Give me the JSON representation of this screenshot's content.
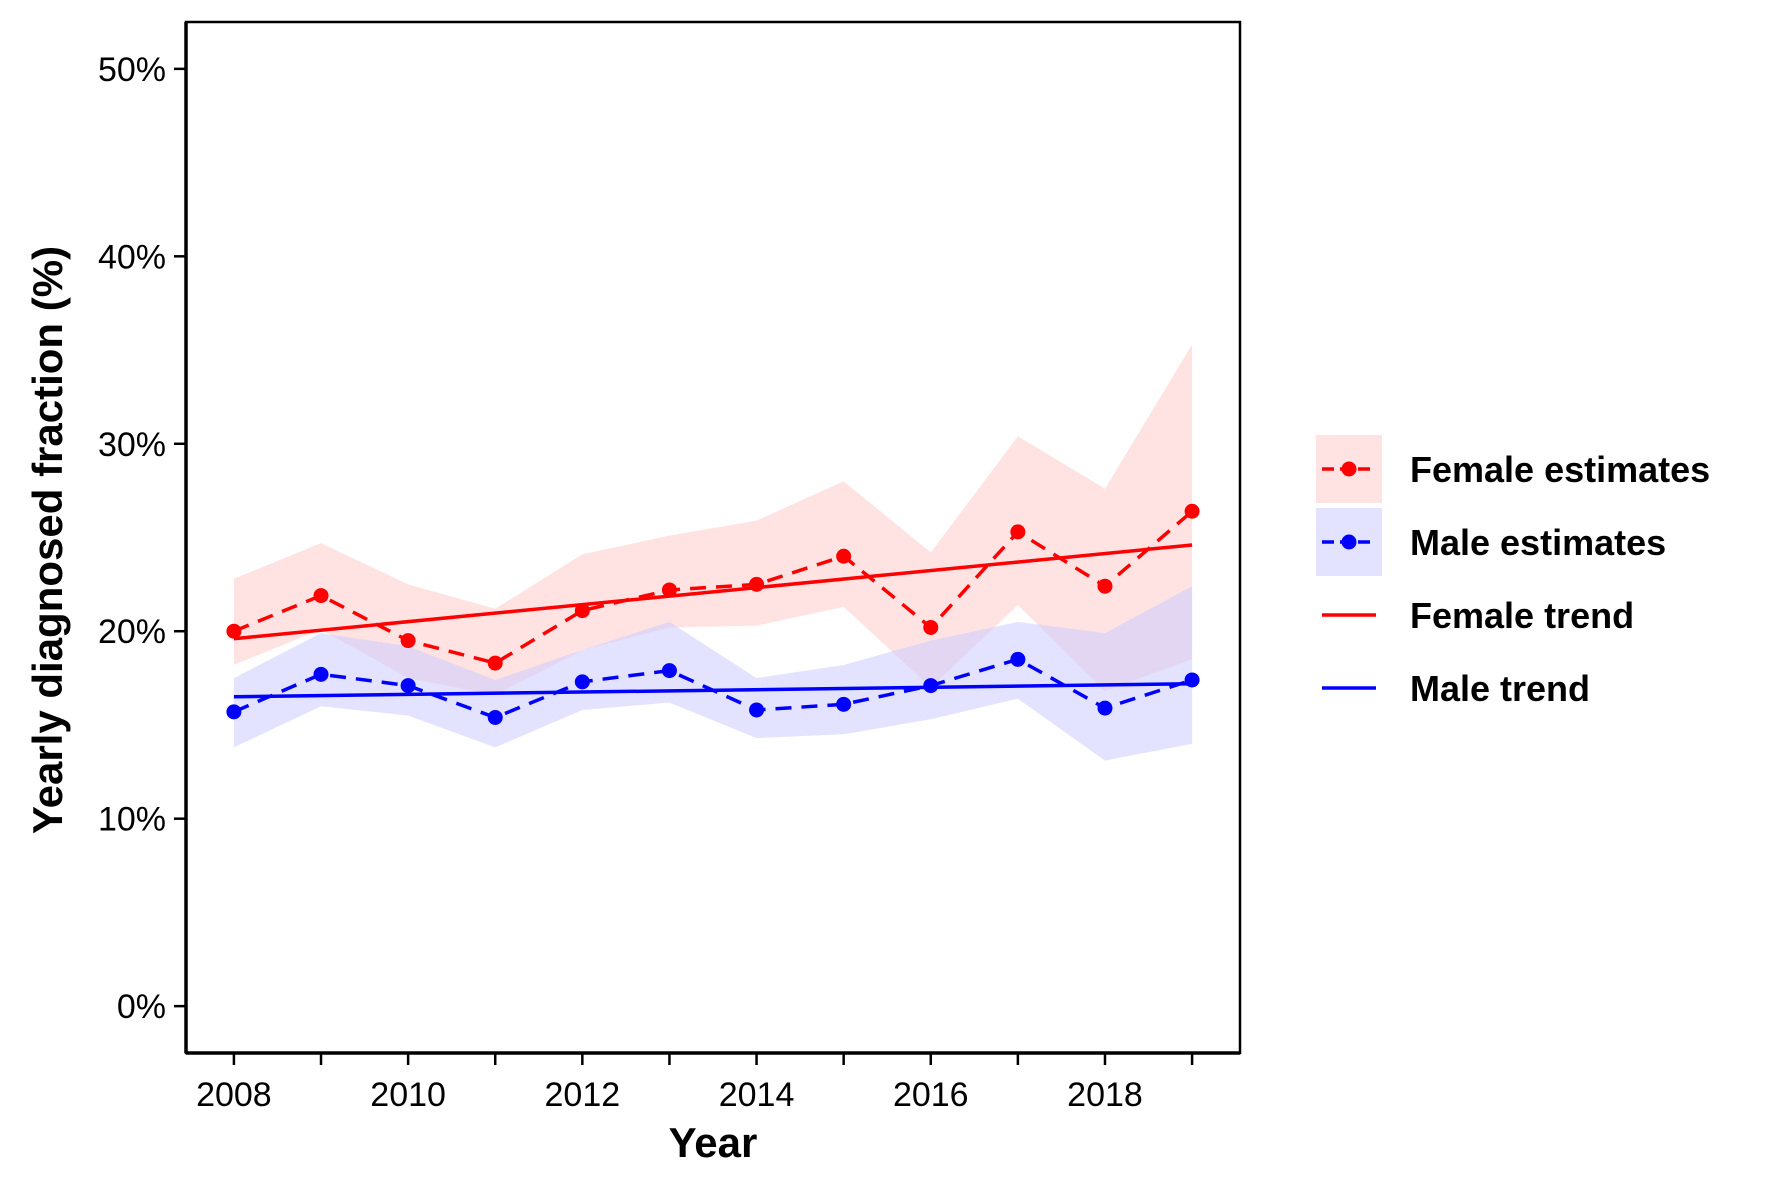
{
  "chart_data": {
    "type": "line",
    "xlabel": "Year",
    "ylabel": "Yearly diagnosed fraction (%)",
    "xlim": [
      2007.45,
      2019.55
    ],
    "ylim": [
      -2.5,
      52.5
    ],
    "x_ticks": [
      2008,
      2009,
      2010,
      2011,
      2012,
      2013,
      2014,
      2015,
      2016,
      2017,
      2018,
      2019
    ],
    "x_tick_labels": [
      "2008",
      "",
      "2010",
      "",
      "2012",
      "",
      "2014",
      "",
      "2016",
      "",
      "2018",
      ""
    ],
    "y_ticks": [
      0,
      10,
      20,
      30,
      40,
      50
    ],
    "y_tick_labels": [
      "0%",
      "10%",
      "20%",
      "30%",
      "40%",
      "50%"
    ],
    "grid": false,
    "legend_position": "right",
    "x": [
      2008,
      2009,
      2010,
      2011,
      2012,
      2013,
      2014,
      2015,
      2016,
      2017,
      2018,
      2019
    ],
    "series": [
      {
        "name": "Female estimates",
        "style": "dashed-points",
        "color": "#ff0000",
        "band_color": "#ffcccc",
        "values": [
          20.0,
          21.9,
          19.5,
          18.3,
          21.1,
          22.2,
          22.5,
          24.0,
          20.2,
          25.3,
          22.4,
          26.4
        ],
        "lower": [
          18.2,
          20.1,
          17.5,
          16.6,
          19.0,
          20.2,
          20.3,
          21.3,
          17.0,
          21.4,
          16.8,
          18.5
        ],
        "upper": [
          22.8,
          24.7,
          22.5,
          21.2,
          24.1,
          25.1,
          25.9,
          28.0,
          24.2,
          30.4,
          27.6,
          35.3
        ]
      },
      {
        "name": "Male estimates",
        "style": "dashed-points",
        "color": "#0000ff",
        "band_color": "#ccccff",
        "values": [
          15.7,
          17.7,
          17.1,
          15.4,
          17.3,
          17.9,
          15.8,
          16.1,
          17.1,
          18.5,
          15.9,
          17.4
        ],
        "lower": [
          13.8,
          16.0,
          15.5,
          13.8,
          15.8,
          16.2,
          14.3,
          14.5,
          15.3,
          16.4,
          13.1,
          14.0
        ],
        "upper": [
          17.5,
          19.9,
          19.2,
          17.4,
          19.0,
          20.5,
          17.5,
          18.2,
          19.5,
          20.5,
          19.9,
          22.4
        ]
      },
      {
        "name": "Female trend",
        "style": "solid",
        "color": "#ff0000",
        "x": [
          2008,
          2019
        ],
        "values": [
          19.6,
          24.6
        ]
      },
      {
        "name": "Male trend",
        "style": "solid",
        "color": "#0000ff",
        "x": [
          2008,
          2019
        ],
        "values": [
          16.5,
          17.2
        ]
      }
    ]
  }
}
